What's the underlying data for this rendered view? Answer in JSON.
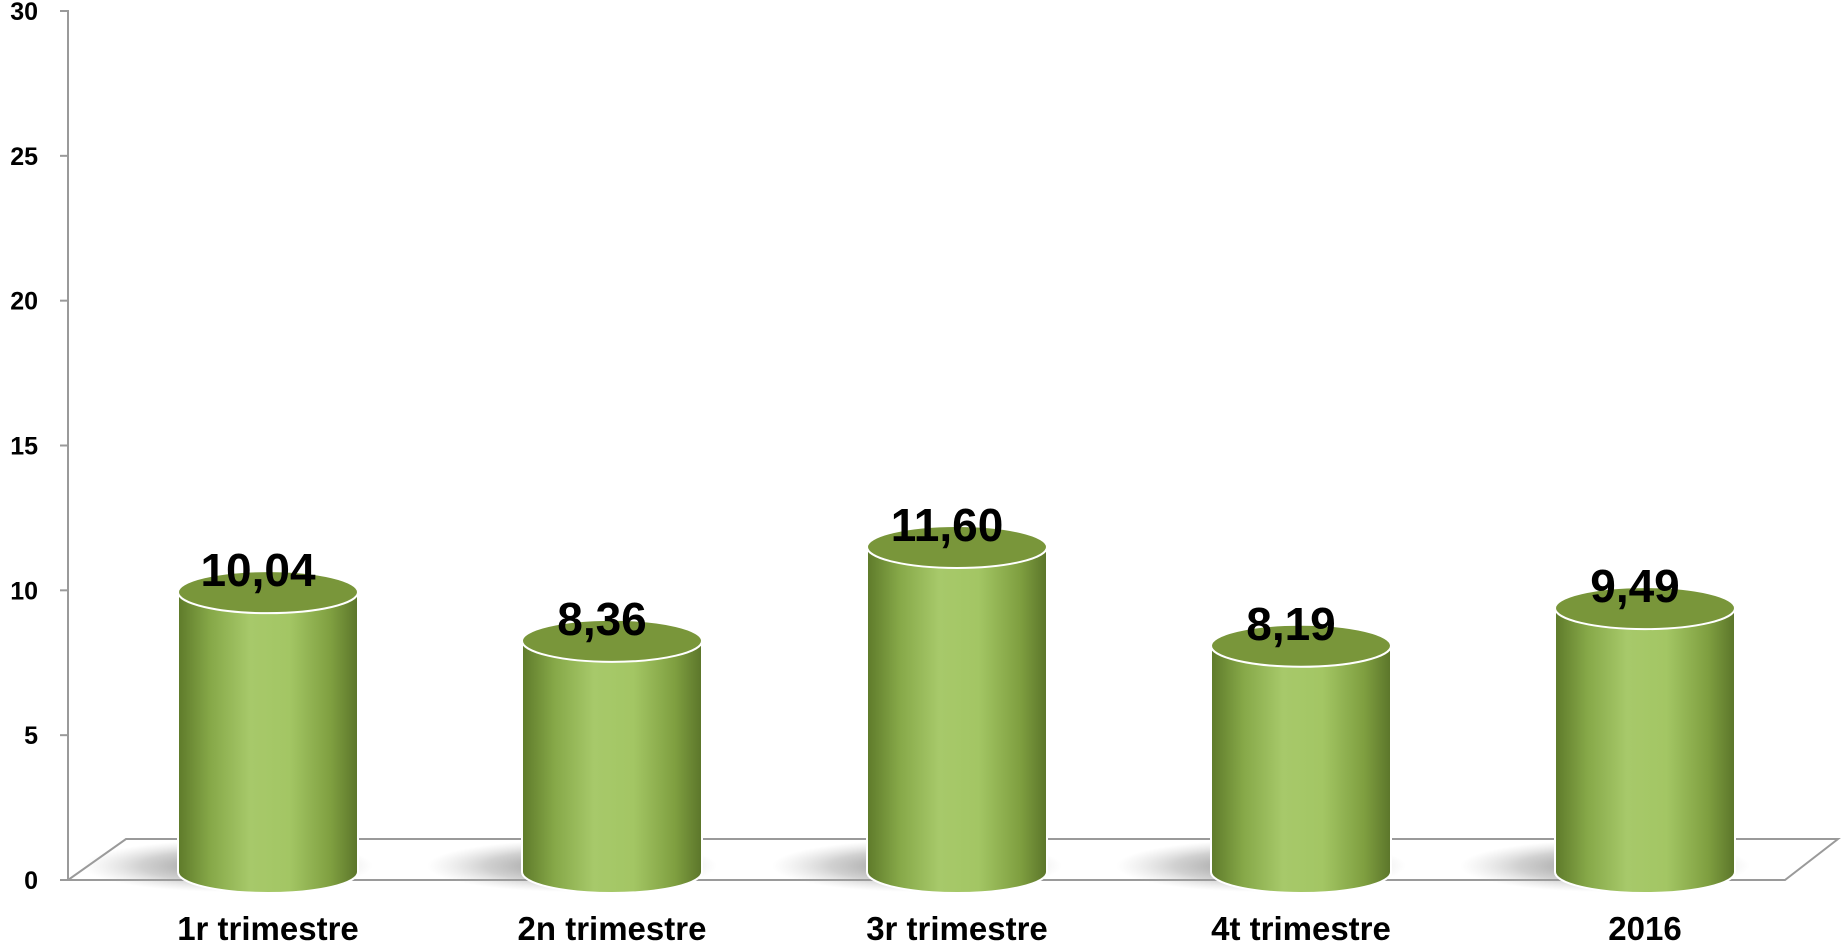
{
  "chart_data": {
    "type": "bar",
    "categories": [
      "1r trimestre",
      "2n trimestre",
      "3r trimestre",
      "4t trimestre",
      "2016"
    ],
    "values": [
      10.04,
      8.36,
      11.6,
      8.19,
      9.49
    ],
    "value_labels": [
      "10,04",
      "8,36",
      "11,60",
      "8,19",
      "9,49"
    ],
    "ylim": [
      0,
      30
    ],
    "yticks": [
      0,
      5,
      10,
      15,
      20,
      25,
      30
    ],
    "ytick_labels": [
      "0",
      "5",
      "10",
      "15",
      "20",
      "25",
      "30"
    ],
    "title": "",
    "xlabel": "",
    "ylabel": "",
    "legend": "none",
    "grid": false,
    "style": "3d-cylinder",
    "colors": {
      "bar_light": "#a6c866",
      "bar_mid": "#8fb24e",
      "bar_dark": "#5f7a2b",
      "bar_top": "#79963a",
      "axis": "#9a9a9a"
    }
  }
}
